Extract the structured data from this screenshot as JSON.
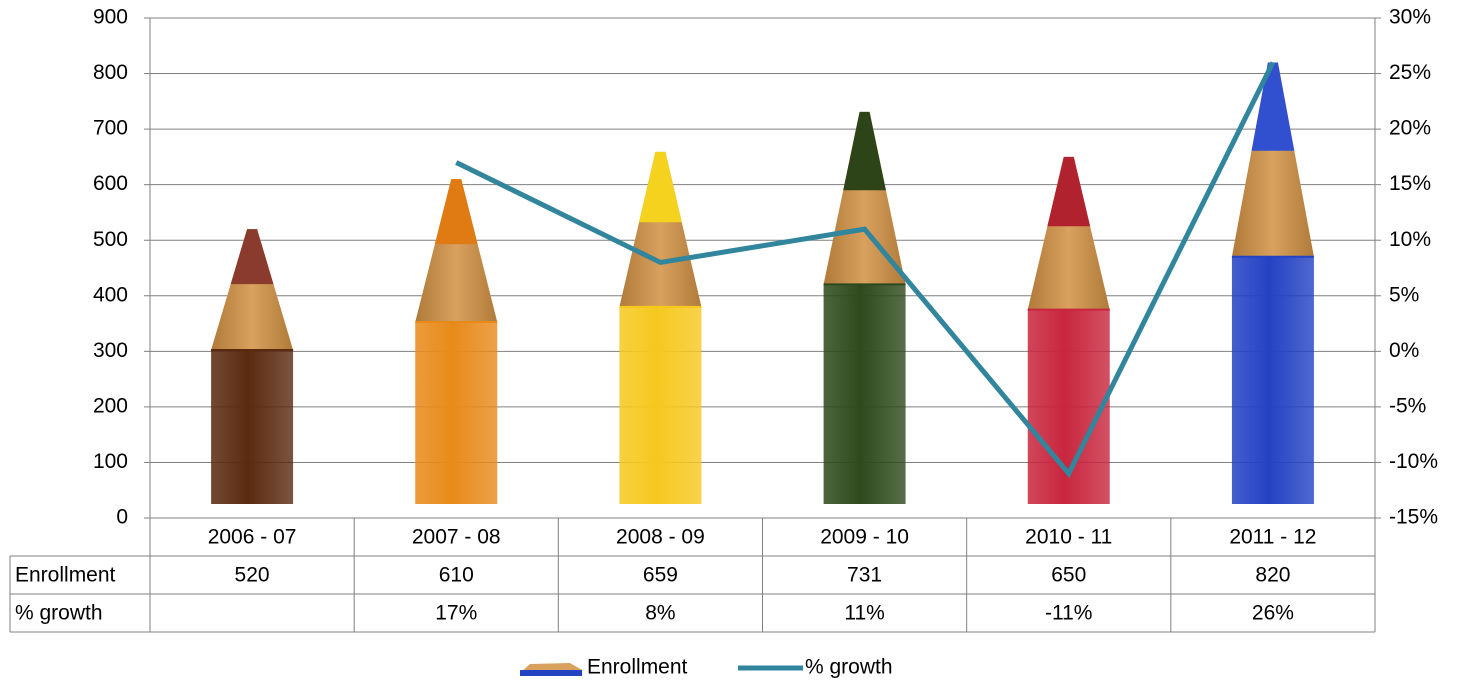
{
  "chart_data": {
    "type": "bar",
    "categories": [
      "2006 - 07",
      "2007 - 08",
      "2008 - 09",
      "2009 - 10",
      "2010 - 11",
      "2011 - 12"
    ],
    "series": [
      {
        "name": "Enrollment",
        "kind": "bar",
        "axis": "left",
        "values": [
          520,
          610,
          659,
          731,
          650,
          820
        ],
        "display": [
          "520",
          "610",
          "659",
          "731",
          "650",
          "820"
        ]
      },
      {
        "name": "% growth",
        "kind": "line",
        "axis": "right",
        "values": [
          null,
          17,
          8,
          11,
          -11,
          26
        ],
        "display": [
          "",
          "17%",
          "8%",
          "11%",
          "-11%",
          "26%"
        ]
      }
    ],
    "y_left": {
      "min": 0,
      "max": 900,
      "ticks": [
        0,
        100,
        200,
        300,
        400,
        500,
        600,
        700,
        800,
        900
      ],
      "tick_labels": [
        "0",
        "100",
        "200",
        "300",
        "400",
        "500",
        "600",
        "700",
        "800",
        "900"
      ]
    },
    "y_right": {
      "min": -15,
      "max": 30,
      "ticks": [
        -15,
        -10,
        -5,
        0,
        5,
        10,
        15,
        20,
        25,
        30
      ],
      "tick_labels": [
        "-15%",
        "-10%",
        "-5%",
        "0%",
        "5%",
        "10%",
        "15%",
        "20%",
        "25%",
        "30%"
      ]
    },
    "grid": true,
    "legend_position": "bottom",
    "data_table": true,
    "colors": {
      "line": "#31859C",
      "grid": "#808080",
      "pencils": [
        {
          "body": "#5A2A10",
          "tip": "#8B3A2E"
        },
        {
          "body": "#E88A1A",
          "tip": "#E07A12"
        },
        {
          "body": "#F6C81E",
          "tip": "#F5D21E"
        },
        {
          "body": "#2E4A1C",
          "tip": "#2C4418"
        },
        {
          "body": "#C8263E",
          "tip": "#B0232E"
        },
        {
          "body": "#2442C4",
          "tip": "#3050D0"
        }
      ],
      "wood": "#D9A15E",
      "wood_dark": "#B07A3A"
    }
  }
}
